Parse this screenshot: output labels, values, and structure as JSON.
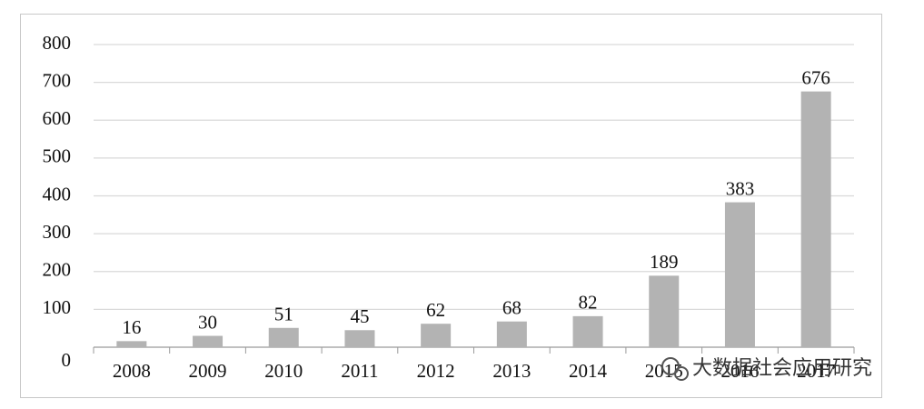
{
  "chart_data": {
    "type": "bar",
    "categories": [
      "2008",
      "2009",
      "2010",
      "2011",
      "2012",
      "2013",
      "2014",
      "2015",
      "2016",
      "2017"
    ],
    "values": [
      16,
      30,
      51,
      45,
      62,
      68,
      82,
      189,
      383,
      676
    ],
    "color": "#b3b3b3",
    "ylim": [
      0,
      800
    ],
    "yticks": [
      0,
      100,
      200,
      300,
      400,
      500,
      600,
      700,
      800
    ],
    "grid": true,
    "watermark": "大数据社会应用研究"
  }
}
